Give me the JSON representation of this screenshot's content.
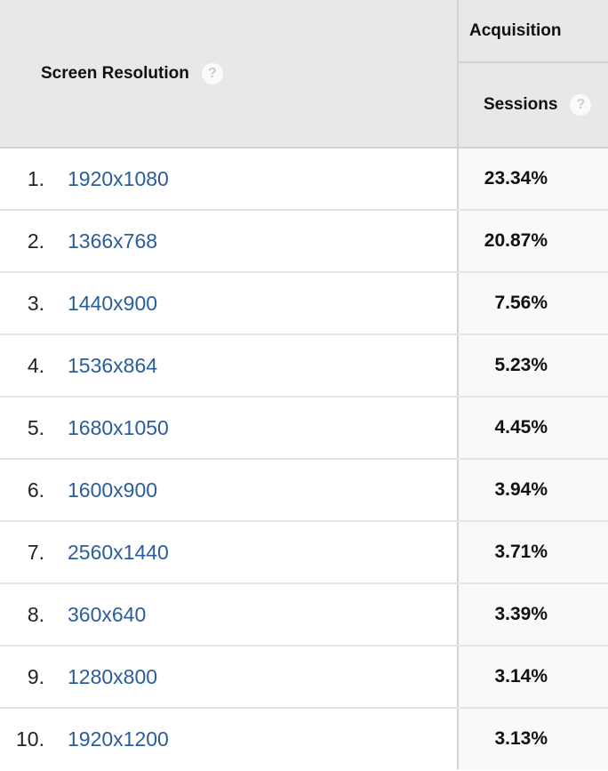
{
  "header": {
    "dimension": "Screen Resolution",
    "group": "Acquisition",
    "metric": "Sessions"
  },
  "rows": [
    {
      "index": "1.",
      "resolution": "1920x1080",
      "sessions": "23.34%"
    },
    {
      "index": "2.",
      "resolution": "1366x768",
      "sessions": "20.87%"
    },
    {
      "index": "3.",
      "resolution": "1440x900",
      "sessions": "7.56%"
    },
    {
      "index": "4.",
      "resolution": "1536x864",
      "sessions": "5.23%"
    },
    {
      "index": "5.",
      "resolution": "1680x1050",
      "sessions": "4.45%"
    },
    {
      "index": "6.",
      "resolution": "1600x900",
      "sessions": "3.94%"
    },
    {
      "index": "7.",
      "resolution": "2560x1440",
      "sessions": "3.71%"
    },
    {
      "index": "8.",
      "resolution": "360x640",
      "sessions": "3.39%"
    },
    {
      "index": "9.",
      "resolution": "1280x800",
      "sessions": "3.14%"
    },
    {
      "index": "10.",
      "resolution": "1920x1200",
      "sessions": "3.13%"
    }
  ],
  "colors": {
    "link": "#2a5d9c",
    "header_bg": "#e8e8e8"
  }
}
